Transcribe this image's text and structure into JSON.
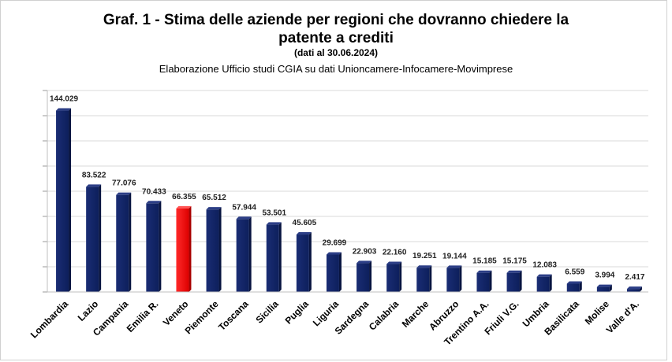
{
  "chart_data": {
    "type": "bar",
    "title_line1": "Graf. 1 - Stima delle aziende per regioni che dovranno chiedere la",
    "title_line2": "patente a crediti",
    "date_note": "(dati al 30.06.2024)",
    "subtitle": "Elaborazione Ufficio studi CGIA su dati Unioncamere-Infocamere-Movimprese",
    "categories": [
      "Lombardia",
      "Lazio",
      "Campania",
      "Emilia R.",
      "Veneto",
      "Piemonte",
      "Toscana",
      "Sicilia",
      "Puglia",
      "Liguria",
      "Sardegna",
      "Calabria",
      "Marche",
      "Abruzzo",
      "Trentino A.A.",
      "Friuli V.G.",
      "Umbria",
      "Basilicata",
      "Molise",
      "Valle d'A."
    ],
    "values": [
      144029,
      83522,
      77076,
      70433,
      66355,
      65512,
      57944,
      53501,
      45605,
      29699,
      22903,
      22160,
      19251,
      19144,
      15185,
      15175,
      12083,
      6559,
      3994,
      2417
    ],
    "value_labels": [
      "144.029",
      "83.522",
      "77.076",
      "70.433",
      "66.355",
      "65.512",
      "57.944",
      "53.501",
      "45.605",
      "29.699",
      "22.903",
      "22.160",
      "19.251",
      "19.144",
      "15.185",
      "15.175",
      "12.083",
      "6.559",
      "3.994",
      "2.417"
    ],
    "ylim": [
      0,
      160000
    ],
    "grid": true,
    "highlight_category": "Veneto",
    "colors": {
      "bar": "#0d1f5c",
      "highlight": "#ff0000",
      "grid": "#d9d9d9"
    }
  }
}
